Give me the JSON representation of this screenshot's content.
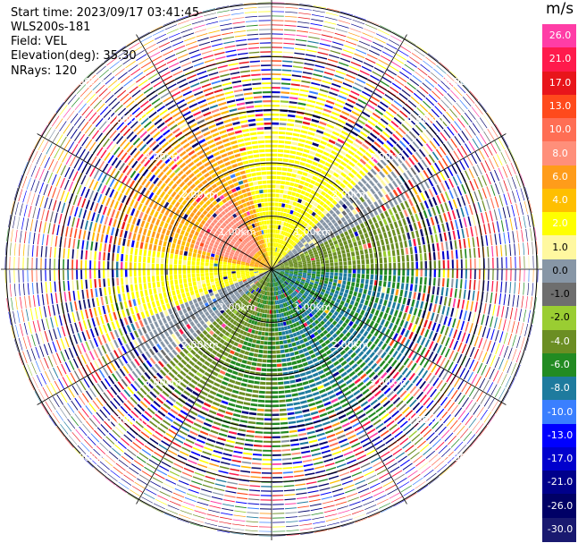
{
  "header": {
    "start_time": {
      "label": "Start time:",
      "value": "2023/09/17 03:41:45"
    },
    "site": "WLS200s-181",
    "field": {
      "label": "Field:",
      "value": "VEL"
    },
    "elevation": {
      "label": "Elevation(deg):",
      "value": "35.30"
    },
    "nrays": {
      "label": "NRays:",
      "value": "120"
    }
  },
  "colorbar": {
    "unit": "m/s",
    "bins": [
      {
        "color": "#ff3da6",
        "tick": "26.0"
      },
      {
        "color": "#ff1a4c",
        "tick": "21.0"
      },
      {
        "color": "#e8151b",
        "tick": "17.0"
      },
      {
        "color": "#ff4a1c",
        "tick": "13.0"
      },
      {
        "color": "#ff6e54",
        "tick": "10.0"
      },
      {
        "color": "#ff8f7a",
        "tick": "8.0"
      },
      {
        "color": "#ff9c1a",
        "tick": "6.0"
      },
      {
        "color": "#ffbf00",
        "tick": "4.0"
      },
      {
        "color": "#ffff00",
        "tick": "2.0"
      },
      {
        "color": "#fff8a0",
        "tick": "1.0"
      },
      {
        "color": "#8796a6",
        "tick": "0.0"
      },
      {
        "color": "#6e6e6e",
        "tick": "-1.0"
      },
      {
        "color": "#9acd32",
        "tick": "-2.0"
      },
      {
        "color": "#6b8e23",
        "tick": "-4.0"
      },
      {
        "color": "#228b22",
        "tick": "-6.0"
      },
      {
        "color": "#1e7b9e",
        "tick": "-8.0"
      },
      {
        "color": "#3a7fff",
        "tick": "-10.0"
      },
      {
        "color": "#0000ff",
        "tick": "-13.0"
      },
      {
        "color": "#0000cd",
        "tick": "-17.0"
      },
      {
        "color": "#00008b",
        "tick": "-21.0"
      },
      {
        "color": "#000066",
        "tick": "-26.0"
      },
      {
        "color": "#191970",
        "tick": "-30.0"
      }
    ]
  },
  "chart_data": {
    "type": "heatmap",
    "projection": "polar",
    "field": "VEL",
    "unit": "m/s",
    "nrays": 120,
    "rings_km": [
      1.0,
      2.0,
      3.0,
      4.0,
      5.0
    ],
    "ring_labels": [
      "1.00km",
      "2.00km",
      "3.00km",
      "4.00km",
      "5.00km"
    ],
    "clean_radius_km": 2.6,
    "max_range_km": 5.1,
    "sectors": [
      {
        "az_from": 0,
        "az_to": 45,
        "vel": 2.5
      },
      {
        "az_from": 45,
        "az_to": 62,
        "vel": 0.5
      },
      {
        "az_from": 62,
        "az_to": 90,
        "vel": -2.5
      },
      {
        "az_from": 90,
        "az_to": 175,
        "vel": -6.0
      },
      {
        "az_from": 175,
        "az_to": 205,
        "vel": -4.0
      },
      {
        "az_from": 205,
        "az_to": 228,
        "vel": -2.5
      },
      {
        "az_from": 228,
        "az_to": 250,
        "vel": 0.5
      },
      {
        "az_from": 250,
        "az_to": 280,
        "vel": 2.5
      },
      {
        "az_from": 280,
        "az_to": 345,
        "vel": 6.0
      },
      {
        "az_from": 345,
        "az_to": 360,
        "vel": 2.5
      }
    ],
    "core_region": {
      "az_from": 285,
      "az_to": 330,
      "r_to_km": 1.5,
      "vel": 9.0
    }
  }
}
